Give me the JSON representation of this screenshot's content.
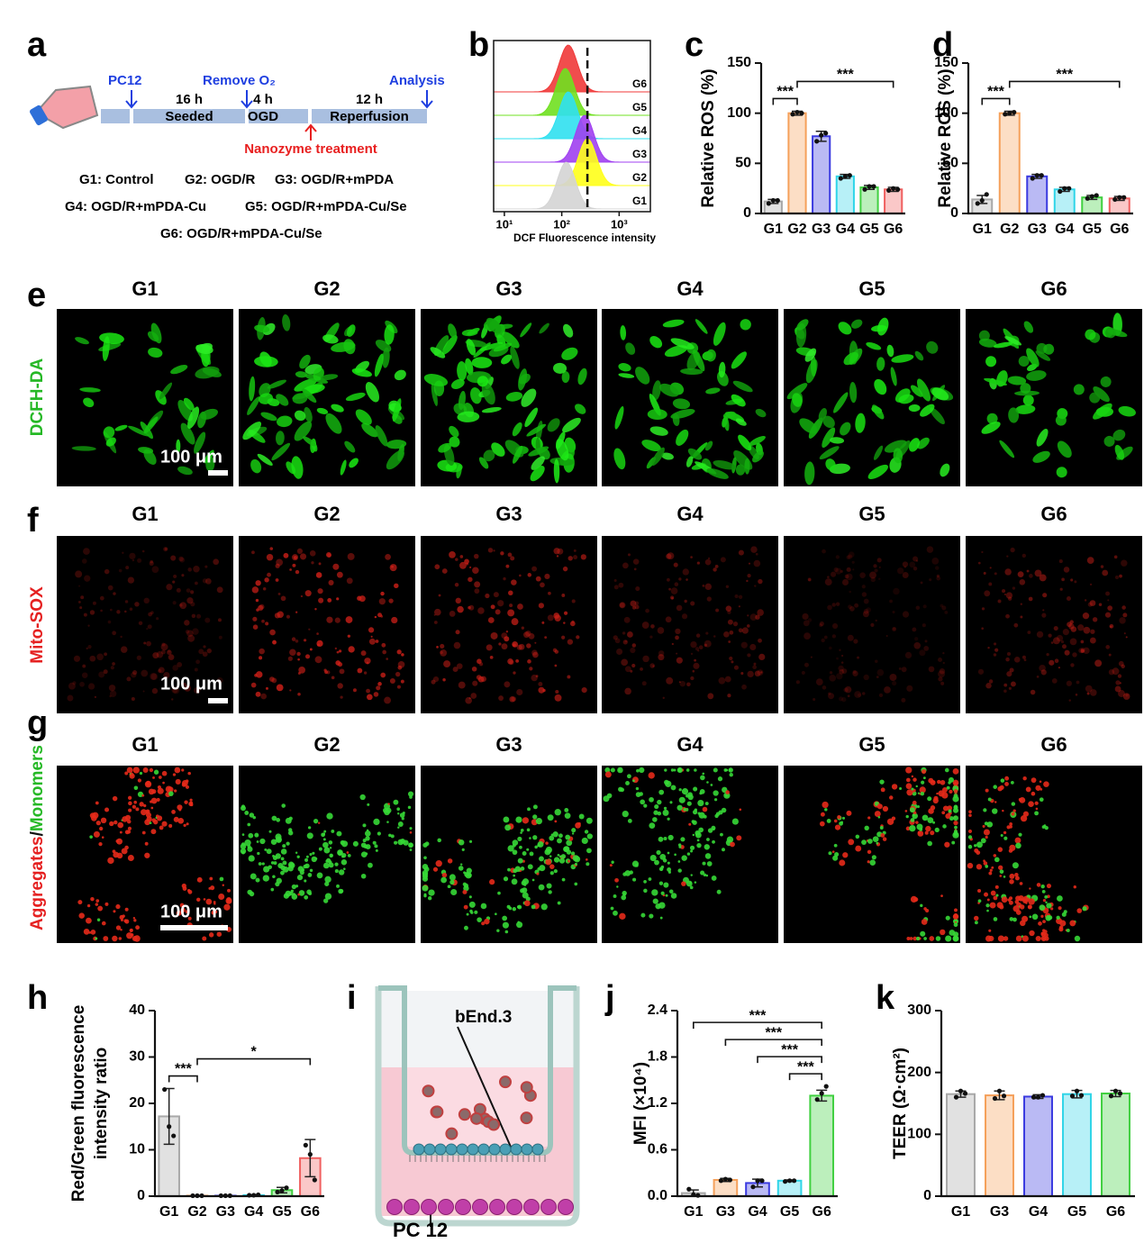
{
  "panel_labels": [
    "a",
    "b",
    "c",
    "d",
    "e",
    "f",
    "g",
    "h",
    "i",
    "j",
    "k"
  ],
  "schematic": {
    "cell_line": "PC12",
    "step_remove": "Remove O₂",
    "step_analysis": "Analysis",
    "durations": [
      "16 h",
      "4 h",
      "12 h"
    ],
    "phases": [
      "Seeded",
      "OGD",
      "Reperfusion"
    ],
    "treatment": "Nanozyme treatment",
    "groups": [
      "G1: Control",
      "G2: OGD/R",
      "G3: OGD/R+mPDA",
      "G4: OGD/R+mPDA-Cu",
      "G5: OGD/R+mPDA-Cu/Se",
      "G6: OGD/R+mPDA-Cu/Se"
    ]
  },
  "imaging": {
    "columns": [
      "G1",
      "G2",
      "G3",
      "G4",
      "G5",
      "G6"
    ],
    "rows": [
      {
        "label": "DCFH-DA"
      },
      {
        "label": "Mito-SOX"
      },
      {
        "label_parts": [
          "Aggregates",
          "/",
          "Monomers"
        ]
      }
    ],
    "scale_bar": "100 μm"
  },
  "transwell": {
    "top_cells": "bEnd.3",
    "bottom_cells": "PC 12"
  },
  "chart_data": [
    {
      "type": "ridgeline",
      "xlabel": "DCF Fluorescence intensity",
      "xscale": "log",
      "xlim": [
        6.5,
        3500
      ],
      "xticks": [
        {
          "value": 10,
          "label": "10¹"
        },
        {
          "value": 100,
          "label": "10²"
        },
        {
          "value": 1000,
          "label": "10³"
        }
      ],
      "reference_x": 280,
      "series": [
        {
          "name": "G1",
          "color": "#d4d4d4",
          "peak": 120
        },
        {
          "name": "G2",
          "color": "#ffff1a",
          "peak": 280
        },
        {
          "name": "G3",
          "color": "#a040f0",
          "peak": 250
        },
        {
          "name": "G4",
          "color": "#30e0f0",
          "peak": 130
        },
        {
          "name": "G5",
          "color": "#70e020",
          "peak": 115
        },
        {
          "name": "G6",
          "color": "#f03a3a",
          "peak": 130
        }
      ]
    },
    {
      "type": "bar",
      "ylabel": "Relative ROS (%)",
      "categories": [
        "G1",
        "G2",
        "G3",
        "G4",
        "G5",
        "G6"
      ],
      "values": [
        12,
        100,
        77,
        37,
        26,
        24
      ],
      "errors": [
        2,
        2,
        5,
        2,
        2,
        2
      ],
      "points": [
        [
          10,
          13,
          13
        ],
        [
          99,
          101,
          100
        ],
        [
          72,
          78,
          80
        ],
        [
          35,
          37,
          38
        ],
        [
          24,
          27,
          27
        ],
        [
          23,
          25,
          24
        ]
      ],
      "colors": [
        "#a8a8a8",
        "#f5a05a",
        "#3a3ae0",
        "#30d5e8",
        "#40d040",
        "#f06060"
      ],
      "ylim": [
        0,
        150
      ],
      "yticks": [
        0,
        50,
        100,
        150
      ],
      "significance": [
        {
          "label": "***",
          "between": [
            "G1",
            "G2"
          ]
        },
        {
          "label": "***",
          "between": [
            "G2",
            "G6"
          ]
        }
      ]
    },
    {
      "type": "bar",
      "ylabel": "Relative ROS (%)",
      "categories": [
        "G1",
        "G2",
        "G3",
        "G4",
        "G5",
        "G6"
      ],
      "values": [
        14,
        100,
        37,
        24,
        16,
        15
      ],
      "errors": [
        4,
        2,
        2,
        2,
        2,
        2
      ],
      "points": [
        [
          10,
          13,
          19
        ],
        [
          99,
          100,
          101
        ],
        [
          35,
          38,
          38
        ],
        [
          22,
          25,
          25
        ],
        [
          15,
          17,
          18
        ],
        [
          14,
          16,
          16
        ]
      ],
      "colors": [
        "#a8a8a8",
        "#f5a05a",
        "#3a3ae0",
        "#30d5e8",
        "#40d040",
        "#f06060"
      ],
      "ylim": [
        0,
        150
      ],
      "yticks": [
        0,
        50,
        100,
        150
      ],
      "significance": [
        {
          "label": "***",
          "between": [
            "G1",
            "G2"
          ]
        },
        {
          "label": "***",
          "between": [
            "G2",
            "G6"
          ]
        }
      ]
    },
    {
      "type": "bar",
      "ylabel": [
        "Red/Green fluorescence",
        "intensity ratio"
      ],
      "categories": [
        "G1",
        "G2",
        "G3",
        "G4",
        "G5",
        "G6"
      ],
      "values": [
        17.2,
        0.1,
        0.1,
        0.2,
        1.3,
        8.2
      ],
      "errors": [
        6,
        0.05,
        0.05,
        0.1,
        0.6,
        4
      ],
      "points": [
        [
          23,
          15,
          13
        ],
        [
          0.1,
          0.1,
          0.1
        ],
        [
          0.1,
          0.1,
          0.1
        ],
        [
          0.2,
          0.2,
          0.3
        ],
        [
          0.9,
          1.2,
          1.8
        ],
        [
          11,
          9,
          3.5
        ]
      ],
      "colors": [
        "#a8a8a8",
        "#f5a05a",
        "#3a3ae0",
        "#30d5e8",
        "#40d040",
        "#f06060"
      ],
      "ylim": [
        0,
        40
      ],
      "yticks": [
        0,
        10,
        20,
        30,
        40
      ],
      "significance": [
        {
          "label": "***",
          "between": [
            "G1",
            "G2"
          ]
        },
        {
          "label": "*",
          "between": [
            "G2",
            "G6"
          ]
        }
      ]
    },
    {
      "type": "bar",
      "ylabel": "MFI (×10⁴)",
      "categories": [
        "G1",
        "G3",
        "G4",
        "G5",
        "G6"
      ],
      "values": [
        0.04,
        0.21,
        0.17,
        0.2,
        1.3
      ],
      "errors": [
        0.04,
        0.02,
        0.05,
        0.01,
        0.07
      ],
      "points": [
        [
          0.09,
          0.02,
          0.01
        ],
        [
          0.2,
          0.22,
          0.21
        ],
        [
          0.12,
          0.2,
          0.2
        ],
        [
          0.19,
          0.2,
          0.2
        ],
        [
          1.25,
          1.33,
          1.42
        ]
      ],
      "colors": [
        "#a8a8a8",
        "#f5a05a",
        "#3a3ae0",
        "#30d5e8",
        "#40d040"
      ],
      "ylim": [
        0,
        2.4
      ],
      "yticks": [
        {
          "value": 0,
          "label": "0.0"
        },
        0.6,
        1.2,
        1.8,
        2.4
      ],
      "significance": [
        {
          "label": "***",
          "between": [
            "G1",
            "G6"
          ]
        },
        {
          "label": "***",
          "between": [
            "G3",
            "G6"
          ]
        },
        {
          "label": "***",
          "between": [
            "G4",
            "G6"
          ]
        },
        {
          "label": "***",
          "between": [
            "G5",
            "G6"
          ]
        }
      ]
    },
    {
      "type": "bar",
      "ylabel": "TEER (Ω·cm²)",
      "categories": [
        "G1",
        "G3",
        "G4",
        "G5",
        "G6"
      ],
      "values": [
        165,
        163,
        161,
        165,
        166
      ],
      "errors": [
        5,
        7,
        3,
        6,
        5
      ],
      "points": [
        [
          160,
          170,
          166
        ],
        [
          158,
          170,
          162
        ],
        [
          160,
          160,
          163
        ],
        [
          162,
          170,
          163
        ],
        [
          162,
          170,
          166
        ]
      ],
      "colors": [
        "#a8a8a8",
        "#f5a05a",
        "#3a3ae0",
        "#30d5e8",
        "#40d040"
      ],
      "ylim": [
        0,
        300
      ],
      "yticks": [
        0,
        100,
        200,
        300
      ],
      "significance": []
    }
  ]
}
